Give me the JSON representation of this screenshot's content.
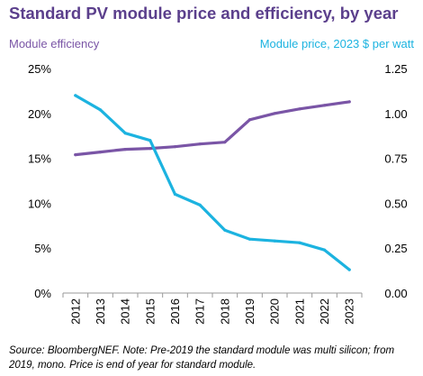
{
  "title": "Standard PV module price and efficiency, by year",
  "left_axis_label": "Module efficiency",
  "right_axis_label": "Module price, 2023 $ per watt",
  "source_note": "Source: BloombergNEF. Note: Pre-2019 the standard module was multi silicon; from 2019, mono. Price is end of year for standard module.",
  "colors": {
    "title": "#5b3f8c",
    "efficiency": "#7a55a6",
    "price": "#1cb3e0",
    "axis_text": "#000000"
  },
  "chart_data": {
    "type": "line",
    "title": "Standard PV module price and efficiency, by year",
    "categories": [
      "2012",
      "2013",
      "2014",
      "2015",
      "2016",
      "2017",
      "2018",
      "2019",
      "2020",
      "2021",
      "2022",
      "2023"
    ],
    "series": [
      {
        "name": "Module efficiency",
        "axis": "left",
        "values": [
          15.4,
          15.7,
          16.0,
          16.1,
          16.3,
          16.6,
          16.8,
          19.3,
          20.0,
          20.5,
          20.9,
          21.3
        ]
      },
      {
        "name": "Module price, 2023 $ per watt",
        "axis": "right",
        "values": [
          1.1,
          1.02,
          0.89,
          0.85,
          0.55,
          0.49,
          0.35,
          0.3,
          0.29,
          0.28,
          0.24,
          0.13
        ]
      }
    ],
    "left_axis": {
      "label": "Module efficiency",
      "ylim": [
        0,
        25
      ],
      "ticks": [
        "0%",
        "5%",
        "10%",
        "15%",
        "20%",
        "25%"
      ]
    },
    "right_axis": {
      "label": "Module price, 2023 $ per watt",
      "ylim": [
        0,
        1.25
      ],
      "ticks": [
        "0.00",
        "0.25",
        "0.50",
        "0.75",
        "1.00",
        "1.25"
      ]
    },
    "grid": false,
    "legend": "none"
  }
}
